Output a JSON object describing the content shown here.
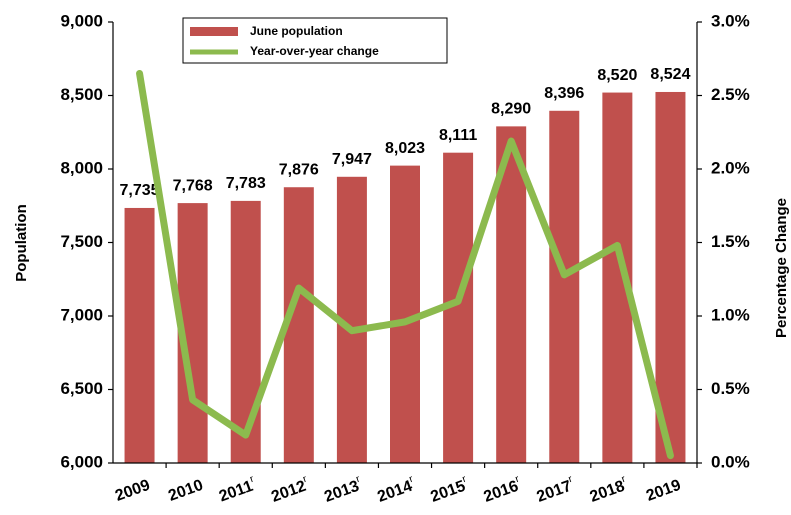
{
  "chart_data": {
    "type": "bar_line",
    "categories": [
      "2009",
      "2010",
      {
        "label": "2011",
        "superscript": "r"
      },
      {
        "label": "2012",
        "superscript": "r"
      },
      {
        "label": "2013",
        "superscript": "r"
      },
      {
        "label": "2014",
        "superscript": "r"
      },
      {
        "label": "2015",
        "superscript": "r"
      },
      {
        "label": "2016",
        "superscript": "r"
      },
      {
        "label": "2017",
        "superscript": "r"
      },
      {
        "label": "2018",
        "superscript": "r"
      },
      "2019"
    ],
    "series": [
      {
        "name": "June population",
        "color": "#c0504d",
        "values": [
          7735,
          7768,
          7783,
          7876,
          7947,
          8023,
          8111,
          8290,
          8396,
          8520,
          8524
        ],
        "value_labels": [
          "7,735",
          "7,768",
          "7,783",
          "7,876",
          "7,947",
          "8,023",
          "8,111",
          "8,290",
          "8,396",
          "8,520",
          "8,524"
        ]
      },
      {
        "name": "Year-over-year change",
        "color": "#8cba4e",
        "axis": "y2",
        "values": [
          2.65,
          0.43,
          0.19,
          1.19,
          0.9,
          0.96,
          1.1,
          2.19,
          1.28,
          1.48,
          0.05
        ]
      }
    ],
    "ylabel": "Population",
    "y2label": "Percentage Change",
    "ylim": [
      6000,
      9000
    ],
    "yticks": [
      {
        "value": 6000,
        "label": "6,000"
      },
      {
        "value": 6500,
        "label": "6,500"
      },
      {
        "value": 7000,
        "label": "7,000"
      },
      {
        "value": 7500,
        "label": "7,500"
      },
      {
        "value": 8000,
        "label": "8,000"
      },
      {
        "value": 8500,
        "label": "8,500"
      },
      {
        "value": 9000,
        "label": "9,000"
      }
    ],
    "y2lim": [
      0,
      3
    ],
    "y2ticks": [
      {
        "value": 0,
        "label": "0.0%"
      },
      {
        "value": 0.5,
        "label": "0.5%"
      },
      {
        "value": 1,
        "label": "1.0%"
      },
      {
        "value": 1.5,
        "label": "1.5%"
      },
      {
        "value": 2,
        "label": "2.0%"
      },
      {
        "value": 2.5,
        "label": "2.5%"
      },
      {
        "value": 3,
        "label": "3.0%"
      }
    ],
    "legend": "top"
  }
}
